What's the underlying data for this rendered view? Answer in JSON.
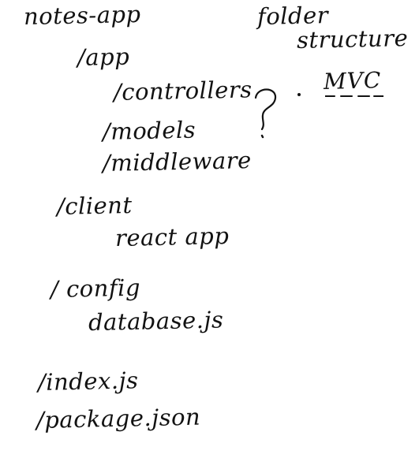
{
  "notes": {
    "root": "notes-app",
    "folder_label": "folder",
    "structure_label": "structure",
    "mvc_label": "MVC",
    "question_mark": "?",
    "items": [
      "/app",
      "/controllers",
      "/models",
      "/middleware",
      "/client",
      "react app",
      "/ config",
      "database.js",
      "/index.js",
      "/package.json"
    ]
  }
}
